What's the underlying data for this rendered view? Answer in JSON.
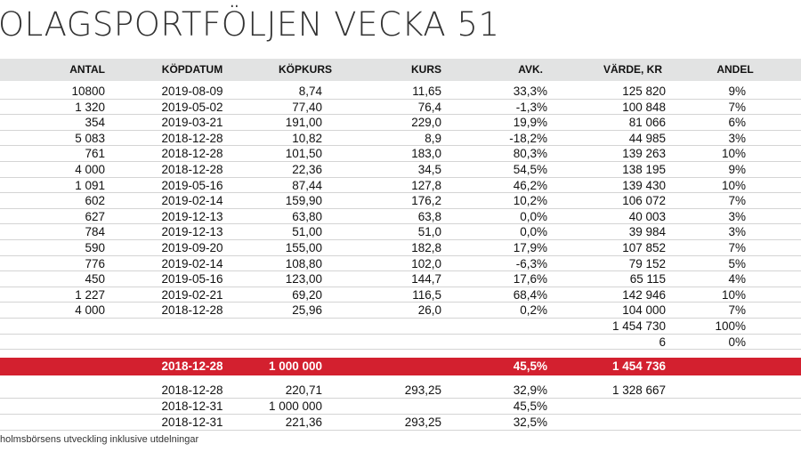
{
  "title": "OLAGSPORTFÖLJEN VECKA 51",
  "headers": [
    "ANTAL",
    "KÖPDATUM",
    "KÖPKURS",
    "KURS",
    "AVK.",
    "VÄRDE, KR",
    "ANDEL"
  ],
  "rows": [
    [
      "10800",
      "2019-08-09",
      "8,74",
      "11,65",
      "33,3%",
      "125 820",
      "9%"
    ],
    [
      "1 320",
      "2019-05-02",
      "77,40",
      "76,4",
      "-1,3%",
      "100 848",
      "7%"
    ],
    [
      "354",
      "2019-03-21",
      "191,00",
      "229,0",
      "19,9%",
      "81 066",
      "6%"
    ],
    [
      "5 083",
      "2018-12-28",
      "10,82",
      "8,9",
      "-18,2%",
      "44 985",
      "3%"
    ],
    [
      "761",
      "2018-12-28",
      "101,50",
      "183,0",
      "80,3%",
      "139 263",
      "10%"
    ],
    [
      "4 000",
      "2018-12-28",
      "22,36",
      "34,5",
      "54,5%",
      "138 195",
      "9%"
    ],
    [
      "1 091",
      "2019-05-16",
      "87,44",
      "127,8",
      "46,2%",
      "139 430",
      "10%"
    ],
    [
      "602",
      "2019-02-14",
      "159,90",
      "176,2",
      "10,2%",
      "106 072",
      "7%"
    ],
    [
      "627",
      "2019-12-13",
      "63,80",
      "63,8",
      "0,0%",
      "40 003",
      "3%"
    ],
    [
      "784",
      "2019-12-13",
      "51,00",
      "51,0",
      "0,0%",
      "39 984",
      "3%"
    ],
    [
      "590",
      "2019-09-20",
      "155,00",
      "182,8",
      "17,9%",
      "107 852",
      "7%"
    ],
    [
      "776",
      "2019-02-14",
      "108,80",
      "102,0",
      "-6,3%",
      "79 152",
      "5%"
    ],
    [
      "450",
      "2019-05-16",
      "123,00",
      "144,7",
      "17,6%",
      "65 115",
      "4%"
    ],
    [
      "1 227",
      "2019-02-21",
      "69,20",
      "116,5",
      "68,4%",
      "142 946",
      "10%"
    ],
    [
      "4 000",
      "2018-12-28",
      "25,96",
      "26,0",
      "0,2%",
      "104 000",
      "7%"
    ],
    [
      "",
      "",
      "",
      "",
      "",
      "1 454 730",
      "100%"
    ],
    [
      "",
      "",
      "",
      "",
      "",
      "6",
      "0%"
    ]
  ],
  "total_row": [
    "",
    "2018-12-28",
    "1 000 000",
    "",
    "45,5%",
    "1 454 736",
    ""
  ],
  "bottom_rows": [
    [
      "",
      "2018-12-28",
      "220,71",
      "293,25",
      "32,9%",
      "1 328 667",
      ""
    ],
    [
      "",
      "2018-12-31",
      "1 000 000",
      "",
      "45,5%",
      "",
      ""
    ],
    [
      "",
      "2018-12-31",
      "221,36",
      "293,25",
      "32,5%",
      "",
      ""
    ]
  ],
  "footnote": "holmsbörsens utveckling inklusive utdelningar",
  "colors": {
    "header_bg": "#e2e3e3",
    "total_bg": "#d3202f",
    "grid": "#d4d4d4"
  }
}
